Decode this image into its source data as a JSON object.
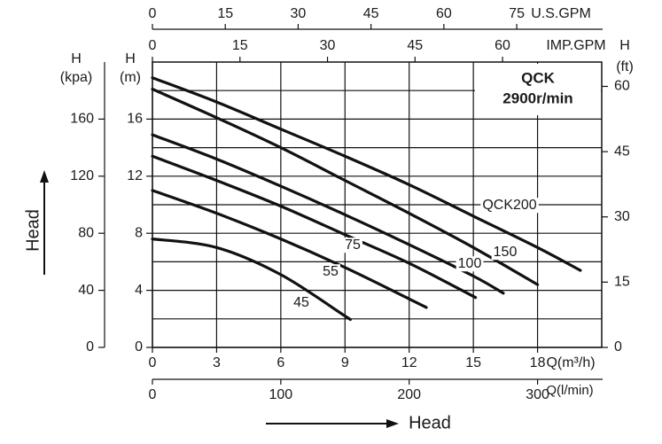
{
  "chart_data": {
    "type": "line",
    "title": "QCK",
    "subtitle": "2900r/min",
    "x_label": "Q(m³/h)",
    "y_label": {
      "symbol": "H",
      "unit": "(m)"
    },
    "xlim": [
      0,
      21
    ],
    "xticks": [
      0,
      3,
      6,
      9,
      12,
      15,
      18
    ],
    "ylim": [
      0,
      20
    ],
    "yticks": [
      0,
      4,
      8,
      12,
      16
    ],
    "y_minor_grid": [
      2,
      6,
      10,
      14,
      18
    ],
    "grid": true,
    "y2_label": {
      "symbol": "H",
      "unit": "(ft)"
    },
    "y2lim": [
      0,
      65.6
    ],
    "y2ticks": [
      0,
      15,
      30,
      45,
      60
    ],
    "extra_axes": [
      {
        "position": "top-outer",
        "label": "U.S.GPM",
        "lim": [
          0,
          92.5
        ],
        "ticks": [
          0,
          15,
          30,
          45,
          60,
          75
        ]
      },
      {
        "position": "top-inner",
        "label": "IMP.GPM",
        "lim": [
          0,
          77
        ],
        "ticks": [
          0,
          15,
          30,
          45,
          60
        ]
      },
      {
        "position": "bottom-outer",
        "label": "Q(l/min)",
        "lim": [
          0,
          350
        ],
        "ticks": [
          0,
          100,
          200,
          300
        ]
      },
      {
        "position": "left-outer",
        "label": {
          "symbol": "H",
          "unit": "(kpa)"
        },
        "lim": [
          0,
          200
        ],
        "ticks": [
          0,
          40,
          80,
          120,
          160
        ]
      }
    ],
    "left_arrow_label": "Head",
    "bottom_arrow_label": "Head",
    "series": [
      {
        "name": "QCK200",
        "color": "#111111",
        "x": [
          0,
          3,
          6,
          9,
          12,
          15,
          18,
          20
        ],
        "values": [
          18.9,
          17.2,
          15.3,
          13.4,
          11.4,
          9.2,
          7.0,
          5.4
        ]
      },
      {
        "name": "150",
        "color": "#111111",
        "x": [
          0,
          3,
          6,
          9,
          12,
          15,
          18
        ],
        "values": [
          18.1,
          16.1,
          14.0,
          11.7,
          9.4,
          7.0,
          4.4
        ]
      },
      {
        "name": "100",
        "color": "#111111",
        "x": [
          0,
          3,
          6,
          9,
          12,
          15,
          16.4
        ],
        "values": [
          14.9,
          13.2,
          11.3,
          9.3,
          7.2,
          5.0,
          3.8
        ]
      },
      {
        "name": "75",
        "color": "#111111",
        "x": [
          0,
          3,
          6,
          9,
          12,
          15.1
        ],
        "values": [
          13.4,
          11.7,
          9.9,
          7.9,
          5.9,
          3.5
        ]
      },
      {
        "name": "55",
        "color": "#111111",
        "x": [
          0,
          3,
          6,
          9,
          12,
          12.8
        ],
        "values": [
          11.0,
          9.4,
          7.6,
          5.6,
          3.4,
          2.8
        ]
      },
      {
        "name": "45",
        "color": "#111111",
        "x": [
          0,
          3,
          6,
          9,
          9.1
        ],
        "values": [
          7.6,
          7.0,
          5.1,
          2.2,
          2.1
        ]
      }
    ]
  }
}
